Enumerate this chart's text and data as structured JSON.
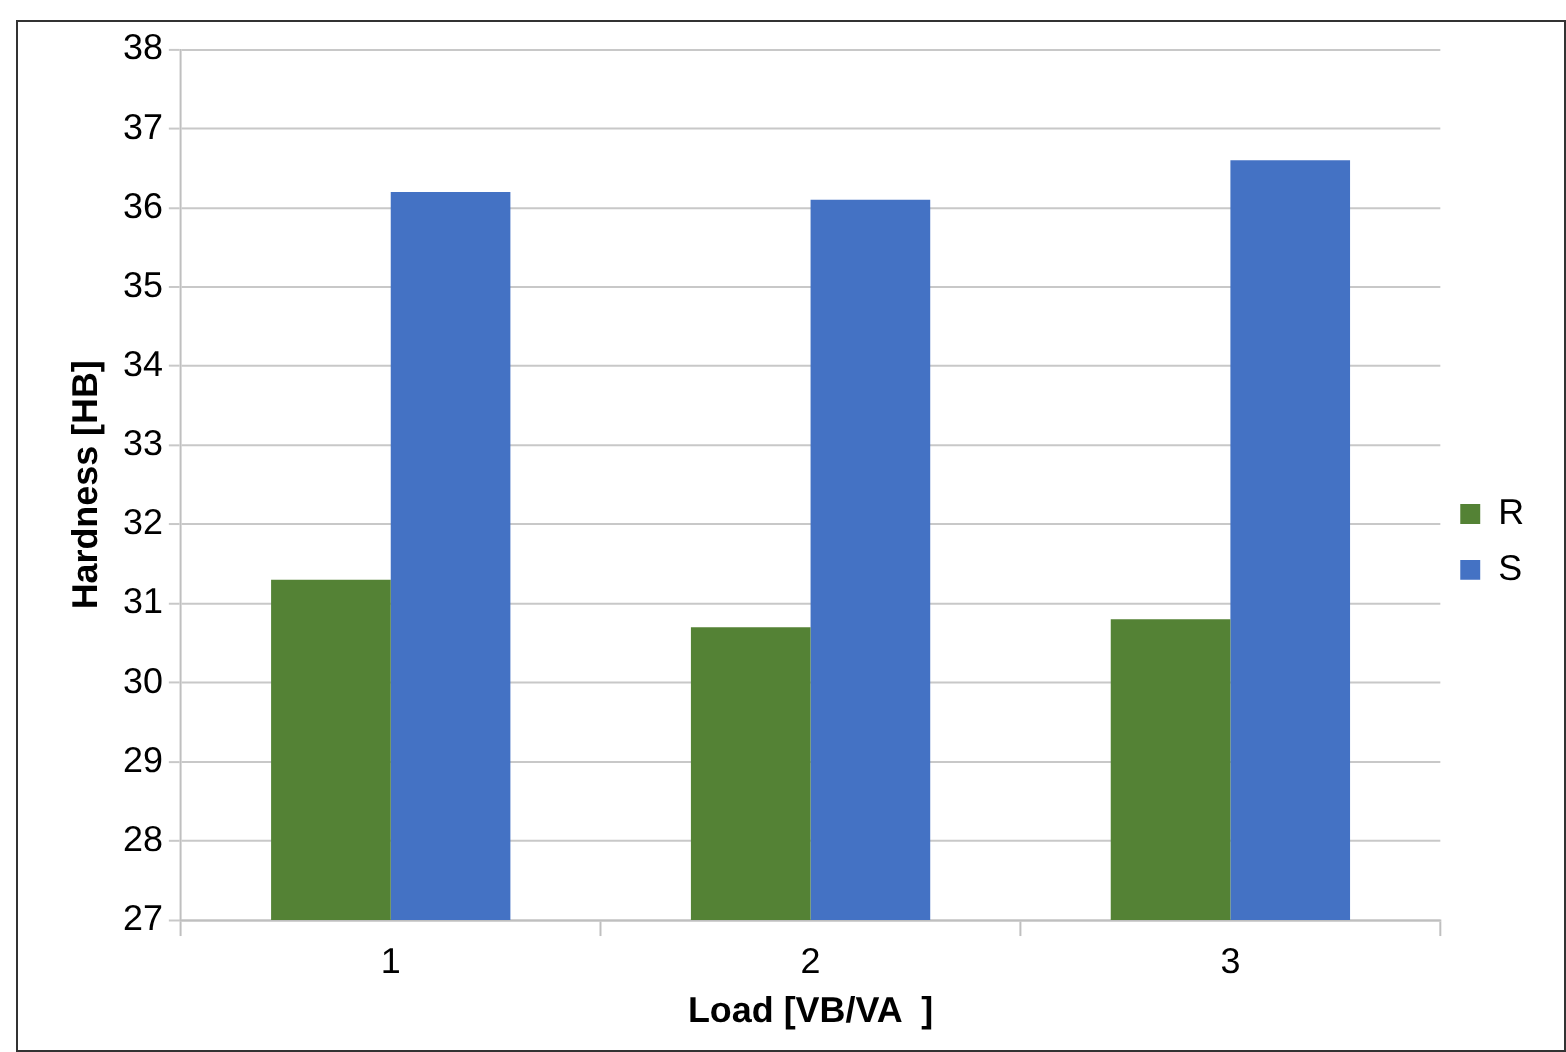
{
  "chart_data": {
    "type": "bar",
    "xlabel": "Load [VB/VA  ]",
    "ylabel": "Hardness [HB]",
    "categories": [
      "1",
      "2",
      "3"
    ],
    "series": [
      {
        "name": "R",
        "color": "#548235",
        "values": [
          31.3,
          30.7,
          30.8
        ]
      },
      {
        "name": "S",
        "color": "#4472c4",
        "values": [
          36.2,
          36.1,
          36.6
        ]
      }
    ],
    "ylim": [
      27,
      38
    ],
    "yticks": [
      27,
      28,
      29,
      30,
      31,
      32,
      33,
      34,
      35,
      36,
      37,
      38
    ],
    "grid": "y",
    "legend": "right"
  }
}
